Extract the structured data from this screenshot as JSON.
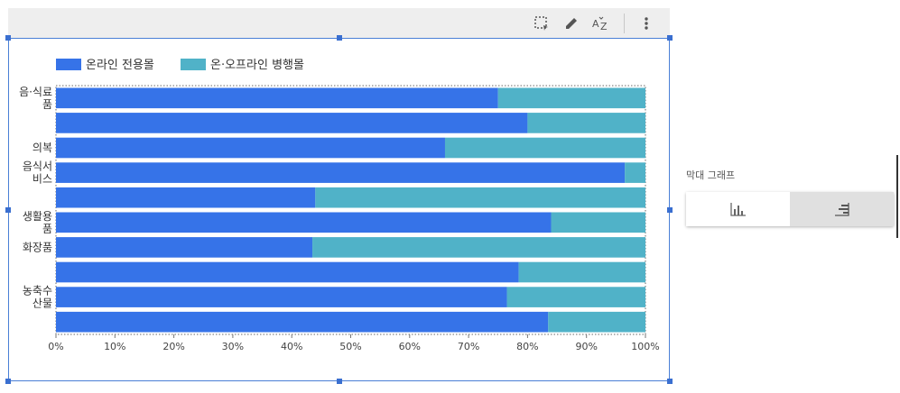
{
  "toolbar": {
    "icons": [
      "select-region-icon",
      "pencil-icon",
      "sort-az-icon",
      "more-vert-icon"
    ]
  },
  "side_panel": {
    "title": "막대 그래프",
    "options": [
      {
        "name": "vertical-bar-option",
        "icon": "vertical-bars-icon",
        "selected": false
      },
      {
        "name": "horizontal-bar-option",
        "icon": "horizontal-bars-icon",
        "selected": true
      }
    ]
  },
  "colors": {
    "online": "#3673e8",
    "both": "#50b2c8",
    "toolbar_bg": "#eeeeee",
    "frame": "#4a7fd6"
  },
  "chart_data": {
    "type": "bar",
    "orientation": "horizontal",
    "stacked": "percent",
    "legend": {
      "position": "top-left"
    },
    "series": [
      {
        "name": "온라인 전용몰",
        "color": "#3673e8",
        "values": [
          75,
          80,
          66,
          96.5,
          44,
          84,
          43.5,
          78.5,
          76.5,
          83.5
        ]
      },
      {
        "name": "온·오프라인 병행몰",
        "color": "#50b2c8",
        "values": [
          25,
          20,
          34,
          3.5,
          56,
          16,
          56.5,
          21.5,
          23.5,
          16.5
        ]
      }
    ],
    "category_labels": [
      {
        "text": "음·식료\n품",
        "row": 0
      },
      {
        "text": "의복",
        "row": 2
      },
      {
        "text": "음식서\n비스",
        "row": 3
      },
      {
        "text": "생활용\n품",
        "row": 5
      },
      {
        "text": "화장품",
        "row": 6
      },
      {
        "text": "농축수\n산물",
        "row": 8
      }
    ],
    "row_count": 10,
    "xticks": [
      "0%",
      "10%",
      "20%",
      "30%",
      "40%",
      "50%",
      "60%",
      "70%",
      "80%",
      "90%",
      "100%"
    ],
    "xlim": [
      0,
      100
    ]
  }
}
